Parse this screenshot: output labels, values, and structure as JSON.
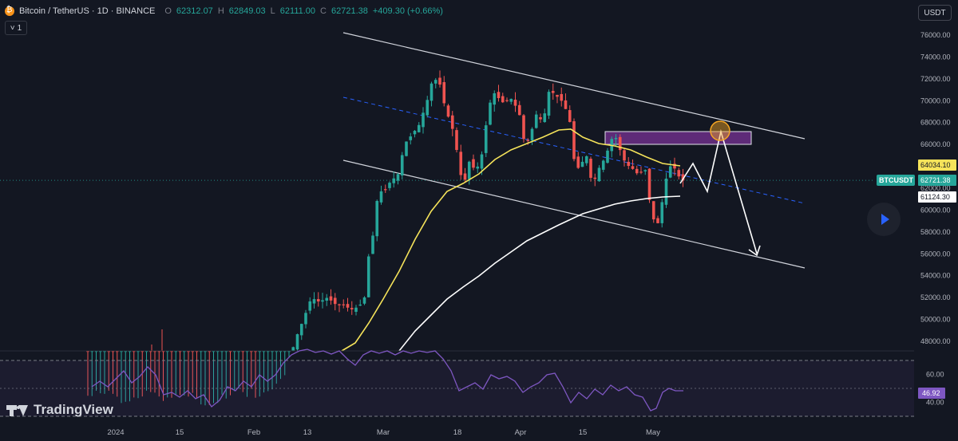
{
  "header": {
    "symbol": "Bitcoin / TetherUS · 1D · BINANCE",
    "o_label": "O",
    "o": "62312.07",
    "h_label": "H",
    "h": "62849.03",
    "l_label": "L",
    "l": "62111.00",
    "c_label": "C",
    "c": "62721.38",
    "change": "+409.30 (+0.66%)"
  },
  "indicator_badge": {
    "chevron": "˅",
    "count": "1"
  },
  "currency_button": "USDT",
  "logo_text": "TradingView",
  "icons": {
    "coin": "bitcoin-icon",
    "play": "play-icon",
    "logo": "tradingview-logo-icon"
  },
  "colors": {
    "bg": "#131722",
    "up": "#26a69a",
    "down": "#ef5350",
    "ma20": "#f5e35a",
    "ma50": "#ffffff",
    "zone": "#6c2f87",
    "rsi": "#7e57c2",
    "grid_text": "#b2b5be"
  },
  "price_badges": [
    {
      "label": "64034.10",
      "bg": "#f5e35a",
      "fg": "#131722"
    },
    {
      "label": "62721.38",
      "bg": "#26a69a",
      "fg": "#ffffff",
      "name": "BTCUSDT"
    },
    {
      "label": "61124.30",
      "bg": "#ffffff",
      "fg": "#131722"
    }
  ],
  "rsi_badge": "46.92",
  "chart_data": [
    {
      "type": "candlestick",
      "xlabel": "",
      "ylabel": "",
      "ylim": [
        46500,
        77000
      ],
      "yticks": [
        "76000.00",
        "74000.00",
        "72000.00",
        "70000.00",
        "68000.00",
        "66000.00",
        "62000.00",
        "60000.00",
        "58000.00",
        "56000.00",
        "54000.00",
        "52000.00",
        "50000.00",
        "48000.00"
      ],
      "xticks": [
        "2024",
        "15",
        "Feb",
        "13",
        "Mar",
        "18",
        "Apr",
        "15",
        "May"
      ],
      "current_price": 62721.38,
      "grid": false
    },
    {
      "type": "line",
      "name": "RSI",
      "ylim": [
        30,
        75
      ],
      "yticks": [
        "60.00",
        "40.00"
      ],
      "levels": [
        70,
        50,
        30
      ],
      "current": 46.92
    }
  ]
}
